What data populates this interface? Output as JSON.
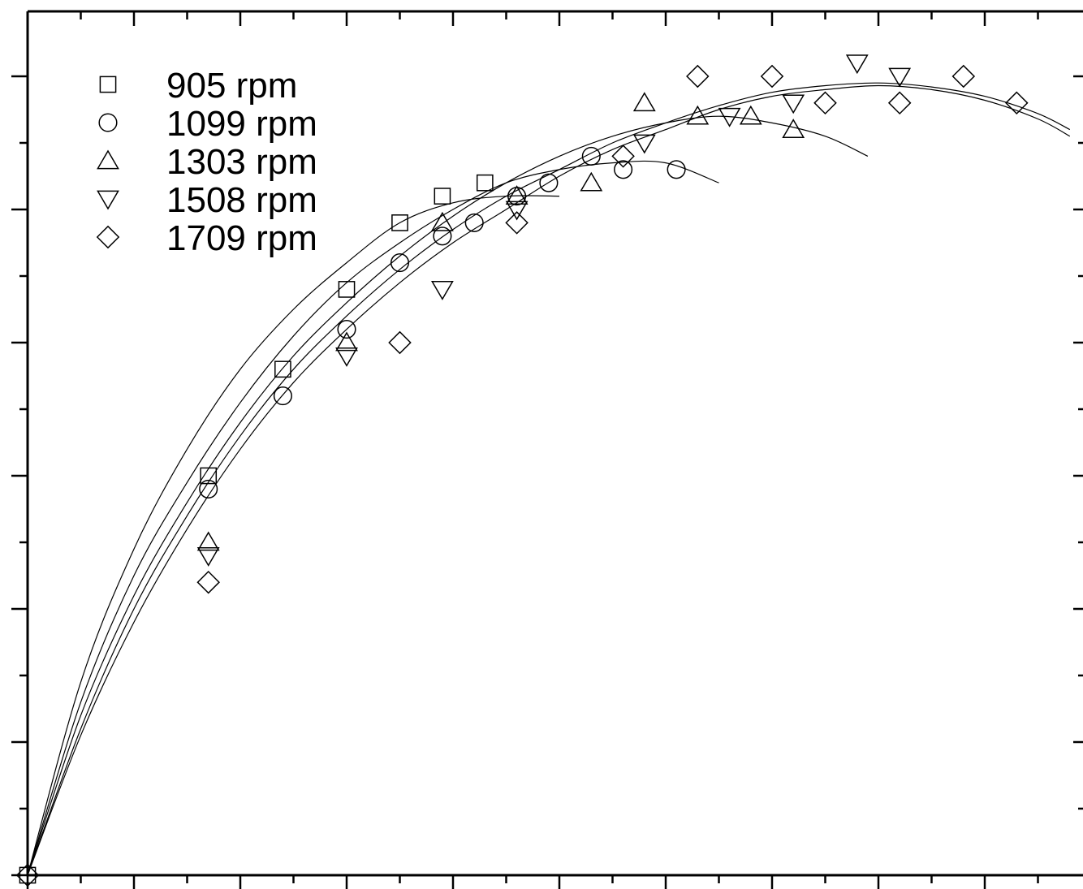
{
  "chart_data": {
    "type": "scatter",
    "title": "",
    "xlabel": "",
    "ylabel": "",
    "xlim": [
      0,
      9.8
    ],
    "ylim": [
      0,
      6.4
    ],
    "x_major_ticks": [
      0,
      1,
      2,
      3,
      4,
      5,
      6,
      7,
      8,
      9
    ],
    "y_major_ticks": [
      0,
      1,
      2,
      3,
      4,
      5,
      6
    ],
    "minor_ticks": true,
    "grid": false,
    "legend_position": "top-left",
    "series": [
      {
        "name": "905 rpm",
        "marker": "square",
        "points": [
          [
            0,
            0
          ],
          [
            1.7,
            3.0
          ],
          [
            2.4,
            3.8
          ],
          [
            3.0,
            4.4
          ],
          [
            3.5,
            4.9
          ],
          [
            3.9,
            5.1
          ],
          [
            4.3,
            5.2
          ]
        ],
        "curve": [
          [
            0,
            0
          ],
          [
            0.5,
            1.45
          ],
          [
            1.0,
            2.45
          ],
          [
            1.5,
            3.2
          ],
          [
            2.0,
            3.8
          ],
          [
            2.5,
            4.25
          ],
          [
            3.0,
            4.6
          ],
          [
            3.5,
            4.9
          ],
          [
            4.0,
            5.05
          ],
          [
            4.5,
            5.1
          ],
          [
            5.0,
            5.1
          ]
        ]
      },
      {
        "name": "1099 rpm",
        "marker": "circle",
        "points": [
          [
            1.7,
            2.9
          ],
          [
            2.4,
            3.6
          ],
          [
            3.0,
            4.1
          ],
          [
            3.5,
            4.6
          ],
          [
            3.9,
            4.8
          ],
          [
            4.2,
            4.9
          ],
          [
            4.6,
            5.1
          ],
          [
            4.9,
            5.2
          ],
          [
            5.3,
            5.4
          ],
          [
            5.6,
            5.3
          ],
          [
            6.1,
            5.3
          ]
        ],
        "curve": [
          [
            0,
            0
          ],
          [
            0.5,
            1.3
          ],
          [
            1.0,
            2.25
          ],
          [
            1.5,
            2.95
          ],
          [
            2.0,
            3.55
          ],
          [
            2.5,
            4.05
          ],
          [
            3.0,
            4.45
          ],
          [
            3.5,
            4.75
          ],
          [
            4.0,
            5.0
          ],
          [
            4.5,
            5.2
          ],
          [
            5.0,
            5.3
          ],
          [
            5.5,
            5.35
          ],
          [
            6.0,
            5.35
          ],
          [
            6.5,
            5.2
          ]
        ]
      },
      {
        "name": "1303 rpm",
        "marker": "triangle-up",
        "points": [
          [
            1.7,
            2.5
          ],
          [
            3.0,
            4.0
          ],
          [
            3.9,
            4.9
          ],
          [
            4.6,
            5.1
          ],
          [
            5.3,
            5.2
          ],
          [
            5.8,
            5.8
          ],
          [
            6.3,
            5.7
          ],
          [
            6.8,
            5.7
          ],
          [
            7.2,
            5.6
          ]
        ],
        "curve": [
          [
            0,
            0
          ],
          [
            0.5,
            1.2
          ],
          [
            1.0,
            2.1
          ],
          [
            1.5,
            2.8
          ],
          [
            2.0,
            3.4
          ],
          [
            2.5,
            3.9
          ],
          [
            3.0,
            4.3
          ],
          [
            3.5,
            4.65
          ],
          [
            4.0,
            4.95
          ],
          [
            4.5,
            5.2
          ],
          [
            5.0,
            5.4
          ],
          [
            5.5,
            5.55
          ],
          [
            6.0,
            5.65
          ],
          [
            6.5,
            5.7
          ],
          [
            7.0,
            5.65
          ],
          [
            7.5,
            5.55
          ],
          [
            7.9,
            5.4
          ]
        ]
      },
      {
        "name": "1508 rpm",
        "marker": "triangle-down",
        "points": [
          [
            1.7,
            2.4
          ],
          [
            3.0,
            3.9
          ],
          [
            3.9,
            4.4
          ],
          [
            4.6,
            5.0
          ],
          [
            5.8,
            5.5
          ],
          [
            6.6,
            5.7
          ],
          [
            7.2,
            5.8
          ],
          [
            7.8,
            6.1
          ],
          [
            8.2,
            6.0
          ]
        ],
        "curve": [
          [
            0,
            0
          ],
          [
            0.5,
            1.1
          ],
          [
            1.0,
            2.0
          ],
          [
            1.5,
            2.7
          ],
          [
            2.0,
            3.3
          ],
          [
            2.5,
            3.8
          ],
          [
            3.0,
            4.2
          ],
          [
            3.5,
            4.55
          ],
          [
            4.0,
            4.85
          ],
          [
            4.5,
            5.1
          ],
          [
            5.0,
            5.3
          ],
          [
            5.5,
            5.5
          ],
          [
            6.0,
            5.65
          ],
          [
            6.5,
            5.78
          ],
          [
            7.0,
            5.88
          ],
          [
            7.5,
            5.93
          ],
          [
            8.0,
            5.95
          ],
          [
            8.5,
            5.92
          ],
          [
            9.0,
            5.85
          ],
          [
            9.5,
            5.72
          ],
          [
            9.8,
            5.6
          ]
        ]
      },
      {
        "name": "1709 rpm",
        "marker": "diamond",
        "points": [
          [
            0,
            0
          ],
          [
            1.7,
            2.2
          ],
          [
            3.5,
            4.0
          ],
          [
            4.6,
            4.9
          ],
          [
            5.6,
            5.4
          ],
          [
            6.3,
            6.0
          ],
          [
            7.0,
            6.0
          ],
          [
            7.5,
            5.8
          ],
          [
            8.2,
            5.8
          ],
          [
            8.8,
            6.0
          ],
          [
            9.3,
            5.8
          ]
        ],
        "curve": [
          [
            0,
            0
          ],
          [
            0.5,
            1.05
          ],
          [
            1.0,
            1.9
          ],
          [
            1.5,
            2.6
          ],
          [
            2.0,
            3.2
          ],
          [
            2.5,
            3.7
          ],
          [
            3.0,
            4.1
          ],
          [
            3.5,
            4.45
          ],
          [
            4.0,
            4.75
          ],
          [
            4.5,
            5.0
          ],
          [
            5.0,
            5.25
          ],
          [
            5.5,
            5.45
          ],
          [
            6.0,
            5.6
          ],
          [
            6.5,
            5.75
          ],
          [
            7.0,
            5.85
          ],
          [
            7.5,
            5.9
          ],
          [
            8.0,
            5.93
          ],
          [
            8.5,
            5.9
          ],
          [
            9.0,
            5.82
          ],
          [
            9.5,
            5.68
          ],
          [
            9.8,
            5.55
          ]
        ]
      }
    ]
  }
}
